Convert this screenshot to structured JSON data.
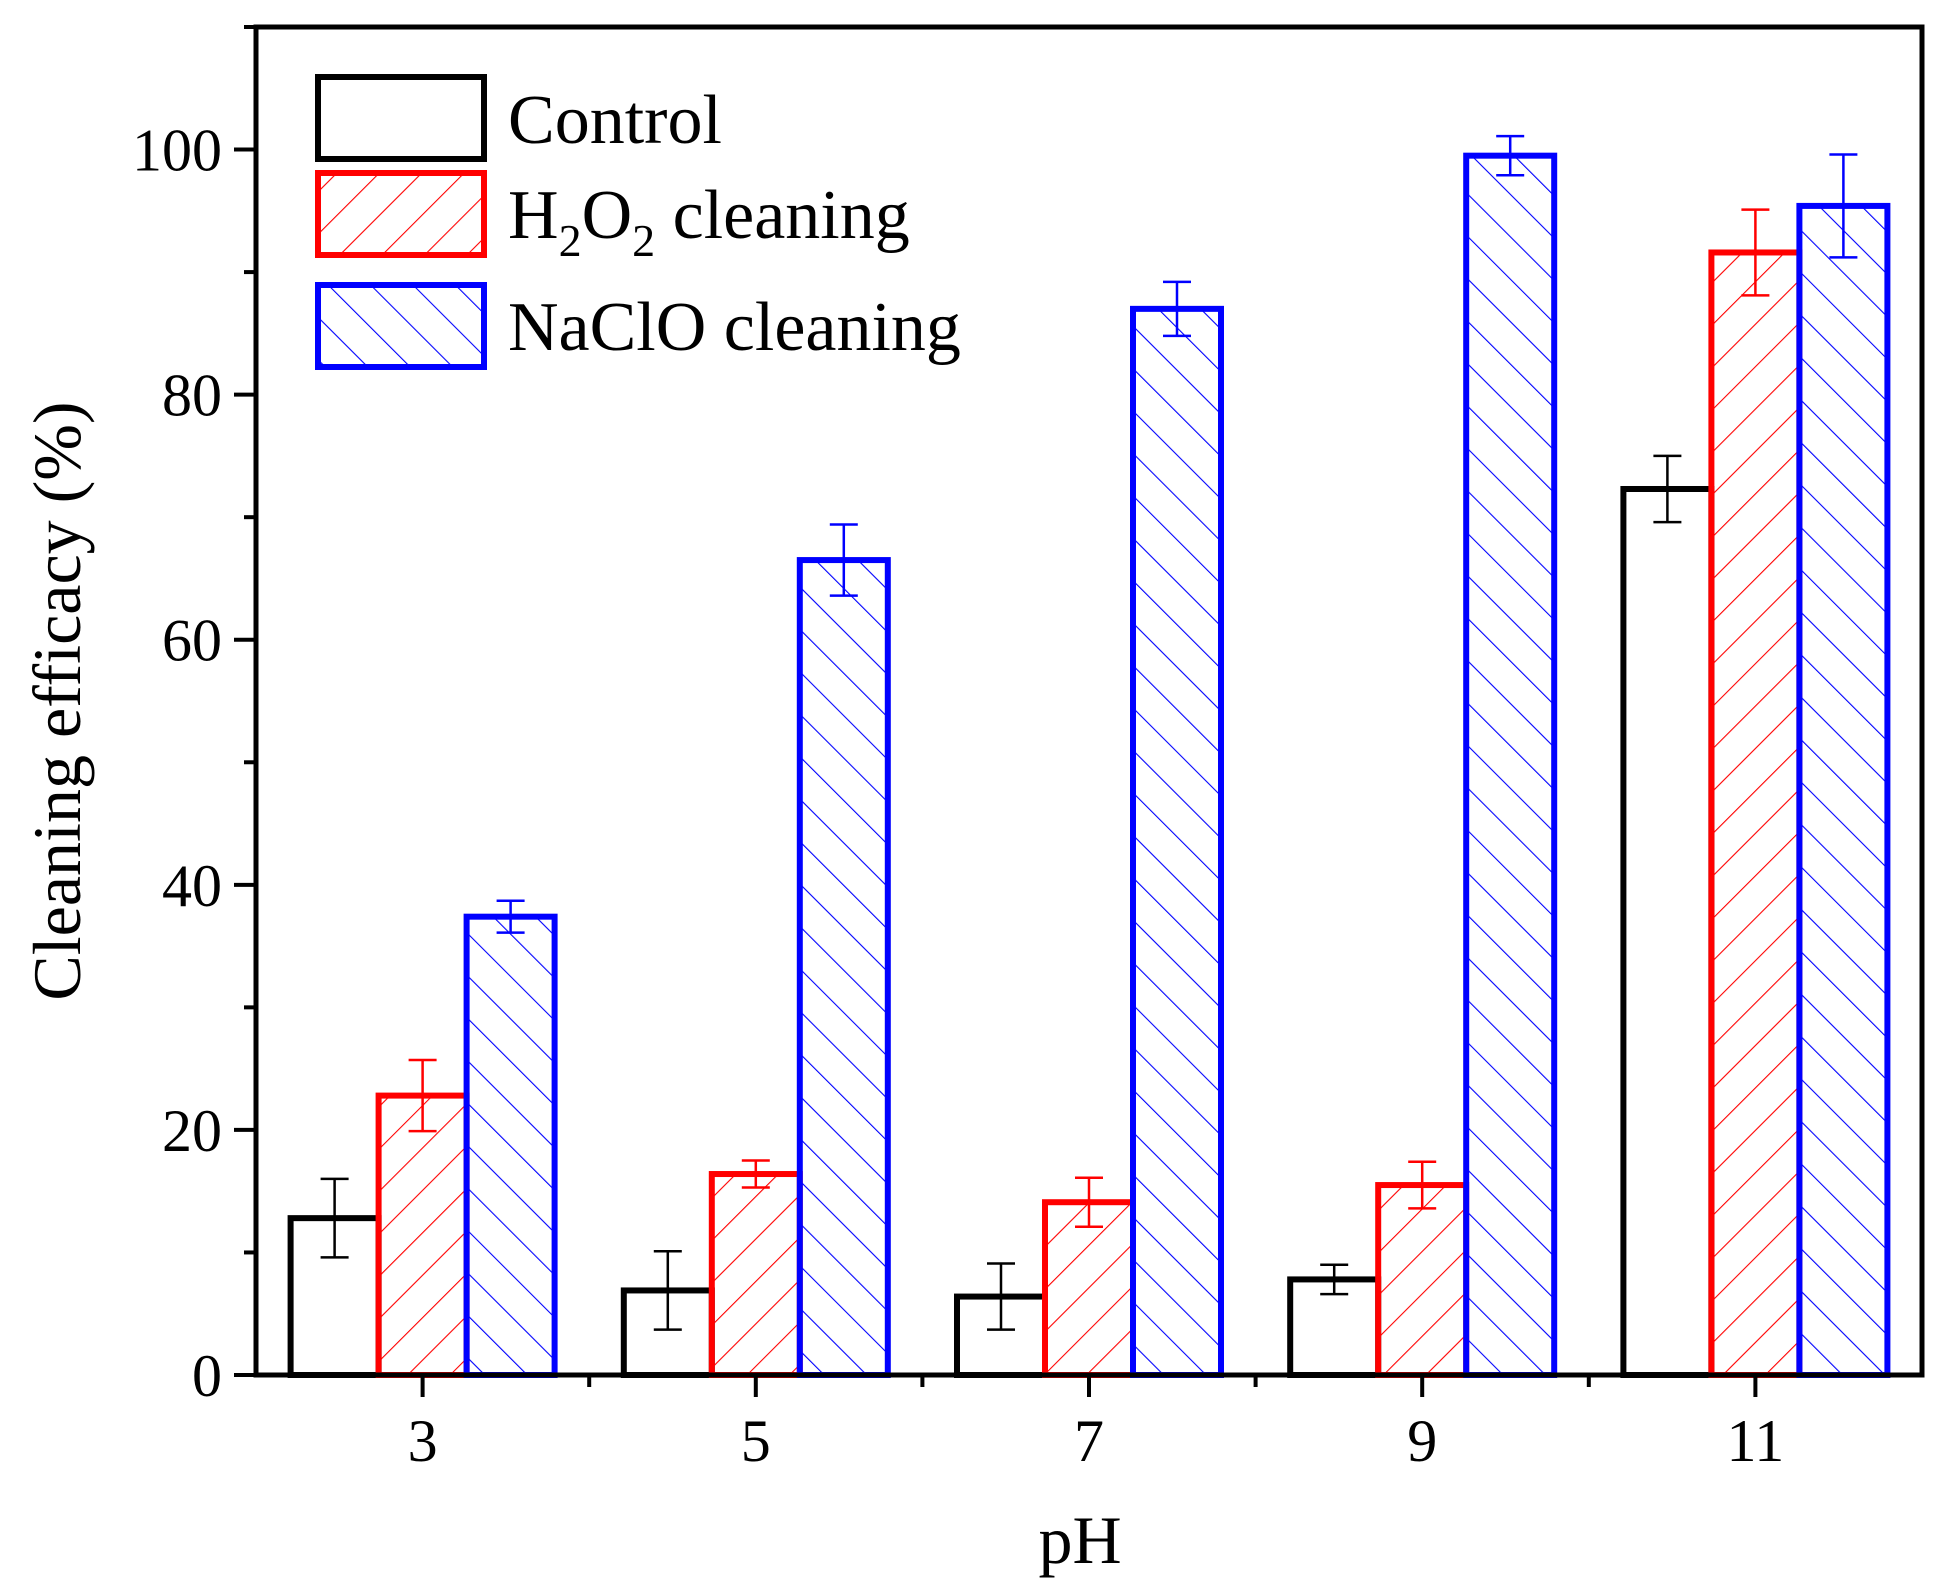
{
  "chart_data": {
    "type": "bar",
    "title": "",
    "xlabel": "pH",
    "ylabel": "Cleaning efficacy (%)",
    "categories": [
      "3",
      "5",
      "7",
      "9",
      "11"
    ],
    "ylim": [
      0,
      110
    ],
    "yticks": [
      "0",
      "20",
      "40",
      "60",
      "80",
      "100"
    ],
    "legend_position": "top-left",
    "series": [
      {
        "name": "Control",
        "legend_label": {
          "pre": "Control",
          "sub1": "",
          "mid": "",
          "sub2": "",
          "post": ""
        },
        "color": "#000000",
        "hatch": "none",
        "values": [
          12.8,
          6.9,
          6.4,
          7.8,
          72.3
        ],
        "errors": [
          3.2,
          3.2,
          2.7,
          1.2,
          2.7
        ]
      },
      {
        "name": "H2O2 cleaning",
        "legend_label": {
          "pre": "H",
          "sub1": "2",
          "mid": "O",
          "sub2": "2",
          "post": " cleaning"
        },
        "color": "#ff0000",
        "hatch": "forward",
        "values": [
          22.8,
          16.4,
          14.1,
          15.5,
          91.6
        ],
        "errors": [
          2.9,
          1.1,
          2.0,
          1.9,
          3.5
        ]
      },
      {
        "name": "NaClO cleaning",
        "legend_label": {
          "pre": "NaClO cleaning",
          "sub1": "",
          "mid": "",
          "sub2": "",
          "post": ""
        },
        "color": "#0000ff",
        "hatch": "back",
        "values": [
          37.4,
          66.5,
          87.0,
          99.5,
          95.4
        ],
        "errors": [
          1.3,
          2.9,
          2.2,
          1.6,
          4.2
        ]
      }
    ]
  }
}
